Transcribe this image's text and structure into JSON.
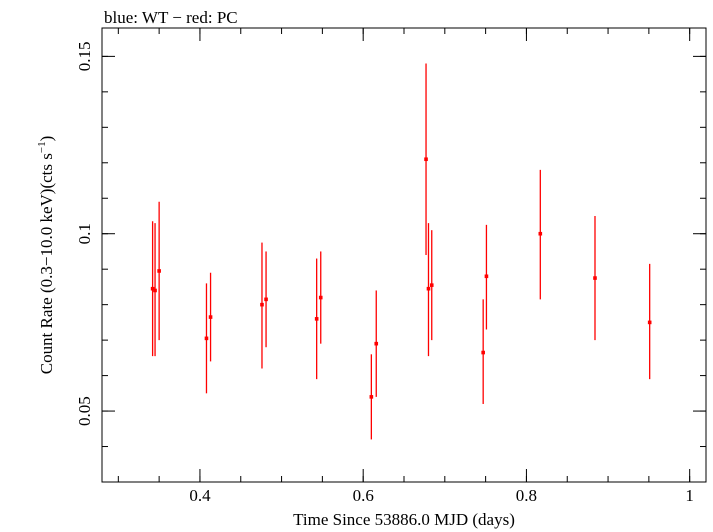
{
  "chart_data": {
    "type": "scatter",
    "title": "blue: WT − red: PC",
    "xlabel": "Time Since 53886.0 MJD (days)",
    "ylabel_main": "Count Rate (0.3−10.0 keV)(cts s",
    "ylabel_sup": "−1",
    "ylabel_close": ")",
    "xlim": [
      0.28,
      1.02
    ],
    "ylim": [
      0.03,
      0.158
    ],
    "xticks": [
      {
        "value": 0.4,
        "label": "0.4"
      },
      {
        "value": 0.6,
        "label": "0.6"
      },
      {
        "value": 0.8,
        "label": "0.8"
      },
      {
        "value": 1.0,
        "label": "1"
      }
    ],
    "x_minor_step": 0.05,
    "yticks": [
      {
        "value": 0.05,
        "label": "0.05"
      },
      {
        "value": 0.1,
        "label": "0.1"
      },
      {
        "value": 0.15,
        "label": "0.15"
      }
    ],
    "y_minor_step": 0.01,
    "grid": false,
    "series": [
      {
        "name": "PC",
        "color": "#ff0000",
        "points": [
          {
            "x": 0.342,
            "y": 0.0845,
            "ylo": 0.0655,
            "yhi": 0.1035
          },
          {
            "x": 0.345,
            "y": 0.084,
            "ylo": 0.0655,
            "yhi": 0.103
          },
          {
            "x": 0.35,
            "y": 0.0895,
            "ylo": 0.07,
            "yhi": 0.109
          },
          {
            "x": 0.408,
            "y": 0.0705,
            "ylo": 0.055,
            "yhi": 0.086
          },
          {
            "x": 0.413,
            "y": 0.0765,
            "ylo": 0.064,
            "yhi": 0.089
          },
          {
            "x": 0.476,
            "y": 0.08,
            "ylo": 0.062,
            "yhi": 0.0975
          },
          {
            "x": 0.481,
            "y": 0.0815,
            "ylo": 0.068,
            "yhi": 0.095
          },
          {
            "x": 0.543,
            "y": 0.076,
            "ylo": 0.059,
            "yhi": 0.093
          },
          {
            "x": 0.548,
            "y": 0.082,
            "ylo": 0.069,
            "yhi": 0.095
          },
          {
            "x": 0.61,
            "y": 0.054,
            "ylo": 0.042,
            "yhi": 0.066
          },
          {
            "x": 0.616,
            "y": 0.069,
            "ylo": 0.054,
            "yhi": 0.084
          },
          {
            "x": 0.677,
            "y": 0.121,
            "ylo": 0.094,
            "yhi": 0.148
          },
          {
            "x": 0.68,
            "y": 0.0845,
            "ylo": 0.0655,
            "yhi": 0.103
          },
          {
            "x": 0.684,
            "y": 0.0855,
            "ylo": 0.07,
            "yhi": 0.101
          },
          {
            "x": 0.747,
            "y": 0.0665,
            "ylo": 0.052,
            "yhi": 0.0815
          },
          {
            "x": 0.751,
            "y": 0.088,
            "ylo": 0.073,
            "yhi": 0.1025
          },
          {
            "x": 0.817,
            "y": 0.1,
            "ylo": 0.0815,
            "yhi": 0.118
          },
          {
            "x": 0.884,
            "y": 0.0875,
            "ylo": 0.07,
            "yhi": 0.105
          },
          {
            "x": 0.951,
            "y": 0.075,
            "ylo": 0.059,
            "yhi": 0.0915
          }
        ]
      }
    ]
  }
}
